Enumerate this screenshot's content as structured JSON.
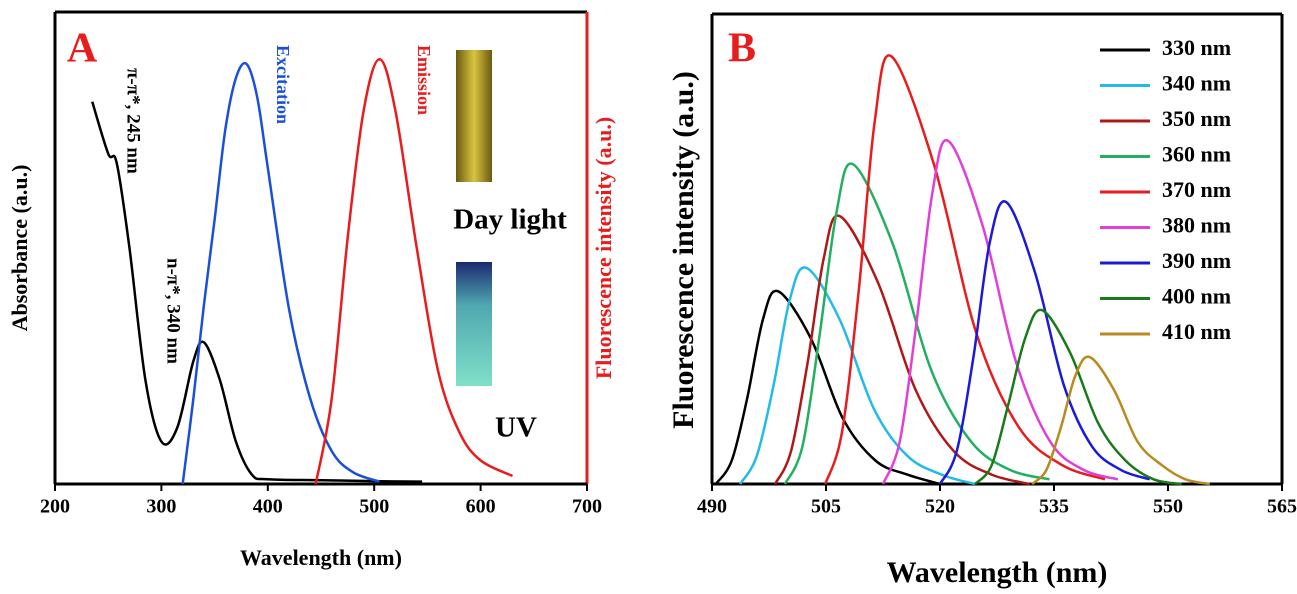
{
  "chart_data": [
    {
      "type": "line",
      "panel_label": "A",
      "xlabel": "Wavelength (nm)",
      "ylabel": "Absorbance (a.u.)",
      "y2label": "Fluorescence intensity (a.u.)",
      "xlim": [
        200,
        700
      ],
      "xticks": [
        200,
        300,
        400,
        500,
        600,
        700
      ],
      "ylim": [
        0,
        1
      ],
      "y2lim": [
        0,
        1
      ],
      "annotations": [
        "π-π*, 245 nm",
        "n-π*, 340 nm",
        "Day light",
        "UV"
      ],
      "series": [
        {
          "color": "#000000",
          "x": [
            235,
            250,
            258,
            270,
            285,
            300,
            315,
            330,
            340,
            355,
            370,
            385,
            400,
            450,
            500,
            545
          ],
          "values": [
            0.81,
            0.7,
            0.68,
            0.5,
            0.22,
            0.09,
            0.12,
            0.26,
            0.3,
            0.22,
            0.09,
            0.02,
            0.01,
            0.008,
            0.006,
            0.005
          ]
        },
        {
          "name": "Excitation",
          "color": "#1a4fd8",
          "axis": "y2",
          "x": [
            320,
            330,
            340,
            350,
            360,
            370,
            380,
            390,
            400,
            420,
            440,
            460,
            480,
            505
          ],
          "values": [
            0,
            0.18,
            0.38,
            0.56,
            0.75,
            0.86,
            0.89,
            0.82,
            0.67,
            0.37,
            0.18,
            0.07,
            0.025,
            0.005
          ]
        },
        {
          "name": "Emission",
          "color": "#e81c1c",
          "axis": "y2",
          "x": [
            445,
            460,
            475,
            490,
            505,
            520,
            540,
            560,
            580,
            600,
            630
          ],
          "values": [
            0,
            0.18,
            0.52,
            0.79,
            0.9,
            0.79,
            0.5,
            0.24,
            0.11,
            0.05,
            0.017
          ]
        }
      ]
    },
    {
      "type": "line",
      "panel_label": "B",
      "xlabel": "Wavelength (nm)",
      "ylabel": "Fluorescence intensity (a.u.)",
      "xlim": [
        490,
        565
      ],
      "xticks": [
        490,
        505,
        520,
        535,
        550,
        565
      ],
      "ylim": [
        0,
        1
      ],
      "legend": "upper right",
      "series": [
        {
          "name": "330 nm",
          "color": "#000000",
          "x": [
            490.5,
            492.6,
            494.6,
            496.7,
            498.7,
            503.0,
            507.2,
            511.5,
            515.7,
            520.0
          ],
          "values": [
            0,
            0.05,
            0.18,
            0.35,
            0.41,
            0.31,
            0.14,
            0.05,
            0.02,
            0
          ]
        },
        {
          "name": "340 nm",
          "color": "#22bbe8",
          "x": [
            493.7,
            495.9,
            498.1,
            500.2,
            502.4,
            506.8,
            511.3,
            515.7,
            520.2,
            524.6
          ],
          "values": [
            0,
            0.06,
            0.21,
            0.39,
            0.46,
            0.35,
            0.16,
            0.06,
            0.02,
            0
          ]
        },
        {
          "name": "350 nm",
          "color": "#b01818",
          "x": [
            498.3,
            500.4,
            502.6,
            504.7,
            506.8,
            511.8,
            516.8,
            521.8,
            526.8,
            531.8
          ],
          "values": [
            0,
            0.07,
            0.26,
            0.48,
            0.57,
            0.43,
            0.2,
            0.07,
            0.02,
            0
          ]
        },
        {
          "name": "360 nm",
          "color": "#20b060",
          "x": [
            499.6,
            501.9,
            504.1,
            506.4,
            508.6,
            513.8,
            518.9,
            524.1,
            529.2,
            534.4
          ],
          "values": [
            0,
            0.08,
            0.31,
            0.58,
            0.68,
            0.51,
            0.24,
            0.09,
            0.03,
            0.01
          ]
        },
        {
          "name": "370 nm",
          "color": "#e81c1c",
          "x": [
            504.9,
            507.1,
            509.3,
            511.4,
            513.6,
            519.2,
            524.8,
            530.4,
            536.1,
            541.7
          ],
          "values": [
            0,
            0.11,
            0.41,
            0.77,
            0.91,
            0.68,
            0.32,
            0.12,
            0.04,
            0.01
          ]
        },
        {
          "name": "380 nm",
          "color": "#e040d8",
          "x": [
            512.5,
            514.7,
            516.8,
            519.0,
            521.1,
            525.6,
            530.0,
            534.5,
            538.9,
            543.4
          ],
          "values": [
            0,
            0.09,
            0.33,
            0.62,
            0.73,
            0.55,
            0.26,
            0.09,
            0.03,
            0.01
          ]
        },
        {
          "name": "390 nm",
          "color": "#1a1ad8",
          "x": [
            520.0,
            522.2,
            524.4,
            526.5,
            528.7,
            532.5,
            536.3,
            540.0,
            543.8,
            547.6
          ],
          "values": [
            0,
            0.07,
            0.27,
            0.51,
            0.6,
            0.45,
            0.21,
            0.08,
            0.03,
            0.01
          ]
        },
        {
          "name": "400 nm",
          "color": "#1a7a1a",
          "x": [
            524.6,
            526.8,
            529.0,
            531.2,
            533.4,
            537.1,
            540.8,
            544.4,
            548.1,
            551.8
          ],
          "values": [
            0,
            0.04,
            0.17,
            0.31,
            0.37,
            0.28,
            0.13,
            0.05,
            0.01,
            0
          ]
        },
        {
          "name": "410 nm",
          "color": "#b88a20",
          "x": [
            532.1,
            534.0,
            535.9,
            537.8,
            539.7,
            542.9,
            546.0,
            549.2,
            552.3,
            555.5
          ],
          "values": [
            0,
            0.03,
            0.12,
            0.23,
            0.27,
            0.2,
            0.09,
            0.04,
            0.01,
            0
          ]
        }
      ]
    }
  ]
}
